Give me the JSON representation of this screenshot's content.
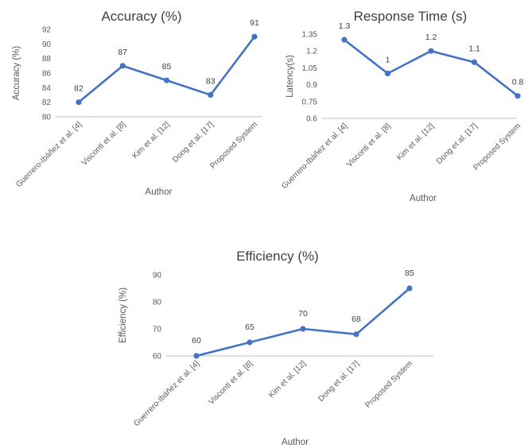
{
  "chart_data": [
    {
      "type": "line",
      "title": "Accuracy (%)",
      "xlabel": "Author",
      "ylabel": "Accuracy (%)",
      "categories": [
        "Guerrero-Ibáñez et al. [4]",
        "Visconti et al. [8]",
        "Kim et al. [12]",
        "Dong et al. [17]",
        "Proposed System"
      ],
      "values": [
        82,
        87,
        85,
        83,
        91
      ],
      "data_labels": [
        "82",
        "87",
        "85",
        "83",
        "91"
      ],
      "ylim": [
        80,
        92
      ],
      "yticks": [
        80,
        82,
        84,
        86,
        88,
        90,
        92
      ],
      "ytick_labels": [
        "80",
        "82",
        "84",
        "86",
        "88",
        "90",
        "92"
      ],
      "grid": false,
      "color": "#4472c4"
    },
    {
      "type": "line",
      "title": "Response Time (s)",
      "xlabel": "Author",
      "ylabel": "Latency(s)",
      "categories": [
        "Guerrero-Ibáñez et al. [4]",
        "Visconti et al. [8]",
        "Kim et al. [12]",
        "Dong et al. [17]",
        "Proposed System"
      ],
      "values": [
        1.3,
        1.0,
        1.2,
        1.1,
        0.8
      ],
      "data_labels": [
        "1.3",
        "1",
        "1.2",
        "1.1",
        "0.8"
      ],
      "ylim": [
        0.6,
        1.35
      ],
      "yticks": [
        0.6,
        0.75,
        0.9,
        1.05,
        1.2,
        1.35
      ],
      "ytick_labels": [
        "0.6",
        "0.75",
        "0.9",
        "1.05",
        "1.2",
        "1.35"
      ],
      "grid": false,
      "color": "#4472c4"
    },
    {
      "type": "line",
      "title": "Efficiency (%)",
      "xlabel": "Author",
      "ylabel": "Efficiency (%)",
      "categories": [
        "Guerrero-Ibáñez et al. [4]",
        "Visconti et al. [8]",
        "Kim et al. [12]",
        "Dong et al. [17]",
        "Proposed System"
      ],
      "values": [
        60,
        65,
        70,
        68,
        85
      ],
      "data_labels": [
        "60",
        "65",
        "70",
        "68",
        "85"
      ],
      "ylim": [
        60,
        90
      ],
      "yticks": [
        60,
        70,
        80,
        90
      ],
      "ytick_labels": [
        "60",
        "70",
        "80",
        "90"
      ],
      "grid": false,
      "color": "#4472c4"
    }
  ]
}
